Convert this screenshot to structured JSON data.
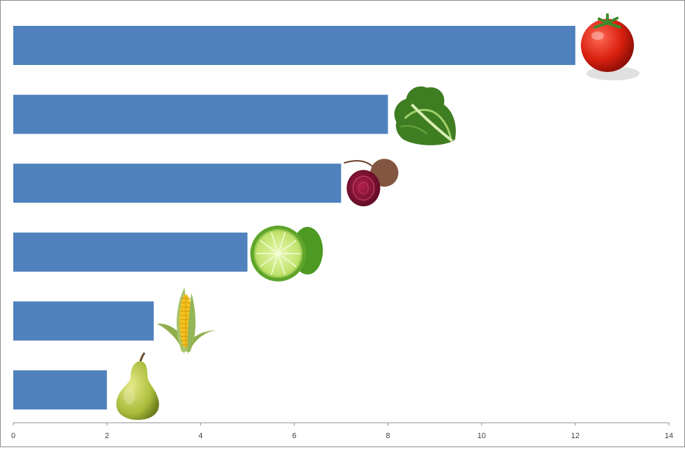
{
  "chart_data": {
    "type": "bar",
    "orientation": "horizontal",
    "categories": [
      "tomato",
      "lettuce",
      "beet",
      "lime",
      "corn",
      "pear"
    ],
    "values": [
      12,
      8,
      7,
      5,
      3,
      2
    ],
    "bar_color": "#4f81bd",
    "icons": [
      "tomato-icon",
      "lettuce-icon",
      "beet-icon",
      "lime-icon",
      "corn-icon",
      "pear-icon"
    ],
    "xlim": [
      0,
      14
    ],
    "x_ticks": [
      "0",
      "2",
      "4",
      "6",
      "8",
      "10",
      "12",
      "14"
    ],
    "grid": false,
    "legend": "none",
    "title": "",
    "xlabel": "",
    "ylabel": ""
  }
}
